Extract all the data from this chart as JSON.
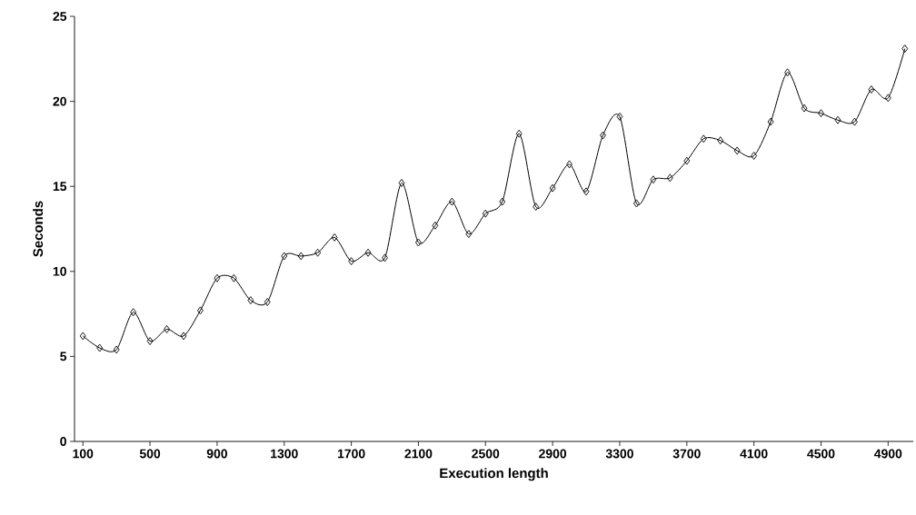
{
  "chart_data": {
    "type": "line",
    "xlabel": "Execution length",
    "ylabel": "Seconds",
    "x": [
      100,
      200,
      300,
      400,
      500,
      600,
      700,
      800,
      900,
      1000,
      1100,
      1200,
      1300,
      1400,
      1500,
      1600,
      1700,
      1800,
      1900,
      2000,
      2100,
      2200,
      2300,
      2400,
      2500,
      2600,
      2700,
      2800,
      2900,
      3000,
      3100,
      3200,
      3300,
      3400,
      3500,
      3600,
      3700,
      3800,
      3900,
      4000,
      4100,
      4200,
      4300,
      4400,
      4500,
      4600,
      4700,
      4800,
      4900,
      5000
    ],
    "series": [
      {
        "color": "#000000",
        "values": [
          6.2,
          5.5,
          5.4,
          7.6,
          5.9,
          6.6,
          6.2,
          7.7,
          9.6,
          9.6,
          8.3,
          8.2,
          10.9,
          10.9,
          11.1,
          12.0,
          10.6,
          11.1,
          10.8,
          15.2,
          11.7,
          12.7,
          14.1,
          12.2,
          13.4,
          14.1,
          18.1,
          13.8,
          14.9,
          16.3,
          14.7,
          18.0,
          19.1,
          14.0,
          15.4,
          15.5,
          16.5,
          17.8,
          17.7,
          17.1,
          16.8,
          18.8,
          21.7,
          19.6,
          19.3,
          18.9,
          18.8,
          20.7,
          20.2,
          23.1
        ]
      }
    ],
    "xlim": [
      50,
      5050
    ],
    "ylim": [
      0,
      25
    ],
    "xticks": [
      100,
      500,
      900,
      1300,
      1700,
      2100,
      2500,
      2900,
      3300,
      3700,
      4100,
      4500,
      4900
    ],
    "yticks": [
      0,
      5,
      10,
      15,
      20,
      25
    ],
    "marker": "diamond",
    "line_style": "solid"
  }
}
